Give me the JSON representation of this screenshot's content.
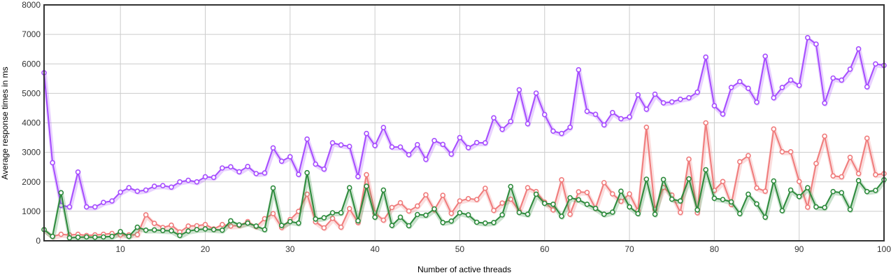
{
  "chart_data": {
    "type": "line",
    "title": "",
    "xlabel": "Number of active threads",
    "ylabel": "Average response times in ms",
    "xlim": [
      1,
      100
    ],
    "ylim": [
      0,
      8000
    ],
    "x_ticks": [
      10,
      20,
      30,
      40,
      50,
      60,
      70,
      80,
      90,
      100
    ],
    "y_ticks": [
      0,
      1000,
      2000,
      3000,
      4000,
      5000,
      6000,
      7000,
      8000
    ],
    "grid": true,
    "legend": "none",
    "x": [
      1,
      2,
      3,
      4,
      5,
      6,
      7,
      8,
      9,
      10,
      11,
      12,
      13,
      14,
      15,
      16,
      17,
      18,
      19,
      20,
      21,
      22,
      23,
      24,
      25,
      26,
      27,
      28,
      29,
      30,
      31,
      32,
      33,
      34,
      35,
      36,
      37,
      38,
      39,
      40,
      41,
      42,
      43,
      44,
      45,
      46,
      47,
      48,
      49,
      50,
      51,
      52,
      53,
      54,
      55,
      56,
      57,
      58,
      59,
      60,
      61,
      62,
      63,
      64,
      65,
      66,
      67,
      68,
      69,
      70,
      71,
      72,
      73,
      74,
      75,
      76,
      77,
      78,
      79,
      80,
      81,
      82,
      83,
      84,
      85,
      86,
      87,
      88,
      89,
      90,
      91,
      92,
      93,
      94,
      95,
      96,
      97,
      98,
      99,
      100
    ],
    "series": [
      {
        "color": "#a64dff",
        "values": [
          5700,
          2650,
          1200,
          1150,
          2330,
          1150,
          1150,
          1300,
          1350,
          1650,
          1800,
          1680,
          1720,
          1850,
          1870,
          1820,
          2000,
          2050,
          2000,
          2170,
          2150,
          2470,
          2510,
          2340,
          2520,
          2280,
          2300,
          3150,
          2700,
          2850,
          2250,
          3450,
          2600,
          2430,
          3320,
          3250,
          3200,
          2180,
          3640,
          3230,
          3840,
          3180,
          3180,
          2920,
          3260,
          2760,
          3400,
          3270,
          2940,
          3500,
          3160,
          3330,
          3320,
          4170,
          3780,
          4050,
          5120,
          3970,
          5010,
          4280,
          3720,
          3640,
          3850,
          5800,
          4390,
          4290,
          3930,
          4350,
          4140,
          4200,
          4950,
          4460,
          4970,
          4680,
          4710,
          4800,
          4850,
          5040,
          6230,
          4580,
          4300,
          5200,
          5400,
          5170,
          4700,
          6260,
          4850,
          5200,
          5450,
          5270,
          6890,
          6670,
          4670,
          5520,
          5450,
          5820,
          6510,
          5220,
          6000,
          5950
        ]
      },
      {
        "color": "#f07c7c",
        "values": [
          380,
          150,
          220,
          200,
          220,
          180,
          200,
          220,
          250,
          200,
          200,
          210,
          880,
          590,
          450,
          530,
          300,
          500,
          510,
          550,
          400,
          550,
          500,
          520,
          650,
          480,
          750,
          920,
          450,
          720,
          1000,
          1580,
          640,
          440,
          760,
          460,
          1090,
          620,
          2240,
          940,
          700,
          1130,
          1290,
          1010,
          1180,
          1560,
          1050,
          1540,
          930,
          1350,
          1430,
          1400,
          1780,
          1030,
          1280,
          1410,
          1010,
          1800,
          1670,
          1310,
          1050,
          2070,
          900,
          1660,
          1640,
          1100,
          1970,
          1590,
          1340,
          1590,
          1020,
          3850,
          1060,
          1810,
          1550,
          960,
          2770,
          950,
          4000,
          1710,
          2010,
          1230,
          2680,
          2890,
          1790,
          1680,
          3790,
          3020,
          3020,
          2010,
          1140,
          2620,
          3550,
          2200,
          2170,
          2830,
          2280,
          3480,
          2240,
          2280
        ]
      },
      {
        "color": "#2e8b3d",
        "values": [
          380,
          150,
          1630,
          100,
          120,
          130,
          120,
          130,
          150,
          310,
          150,
          460,
          360,
          370,
          350,
          340,
          180,
          330,
          380,
          400,
          380,
          360,
          680,
          540,
          600,
          500,
          380,
          1790,
          520,
          650,
          600,
          2310,
          740,
          780,
          950,
          950,
          1800,
          680,
          1850,
          800,
          1720,
          520,
          800,
          510,
          890,
          870,
          1080,
          620,
          670,
          950,
          880,
          630,
          600,
          620,
          880,
          1840,
          960,
          900,
          1580,
          1270,
          1240,
          830,
          1460,
          1390,
          1240,
          1100,
          900,
          970,
          1680,
          1150,
          920,
          2090,
          900,
          2080,
          1410,
          1350,
          2100,
          1050,
          2410,
          1440,
          1400,
          1320,
          920,
          1580,
          1250,
          800,
          2030,
          1020,
          1720,
          1500,
          1800,
          1150,
          1130,
          1670,
          1630,
          1060,
          2040,
          1670,
          1710,
          2070
        ]
      }
    ]
  }
}
